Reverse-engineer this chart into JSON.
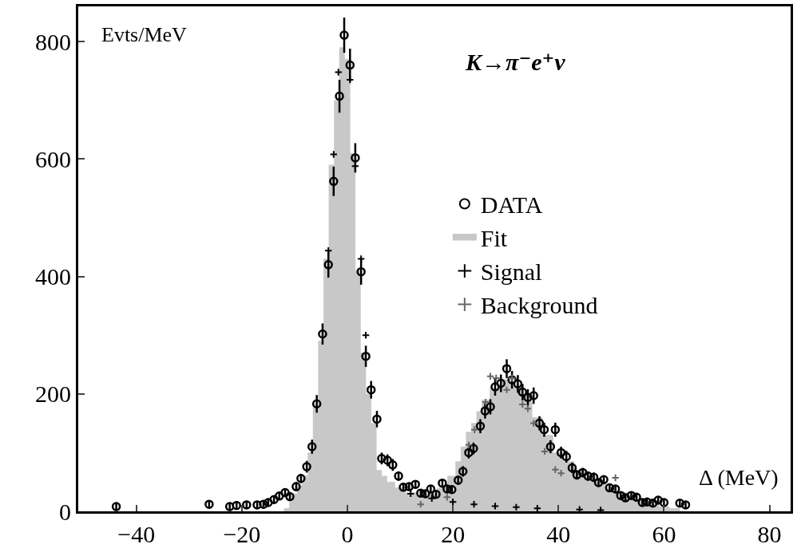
{
  "chart_data": {
    "type": "scatter",
    "title": "K→π⁻e⁺ν",
    "xlabel": "Δ (MeV)",
    "ylabel": "Evts/MeV",
    "xlim": [
      -51,
      84
    ],
    "ylim": [
      0,
      860
    ],
    "xticks": [
      -40,
      -20,
      0,
      20,
      40,
      60,
      80
    ],
    "yticks": [
      0,
      200,
      400,
      600,
      800
    ],
    "grid": false,
    "legend": "right",
    "series": [
      {
        "name": "DATA",
        "type": "scatter",
        "marker": "circle",
        "color": "#000000",
        "x": [
          -43.8,
          -26.2,
          -22.3,
          -21,
          -19.1,
          -17.1,
          -15.9,
          -15,
          -13.9,
          -12.9,
          -11.8,
          -10.9,
          -9.7,
          -8.8,
          -7.7,
          -6.7,
          -5.8,
          -4.7,
          -3.6,
          -2.6,
          -1.5,
          -0.6,
          0.5,
          1.5,
          2.6,
          3.5,
          4.5,
          5.6,
          6.5,
          7.6,
          8.6,
          9.7,
          10.6,
          11.7,
          12.9,
          13.9,
          14.8,
          15.8,
          16.8,
          18,
          18.9,
          19.8,
          21,
          21.9,
          23,
          23.9,
          25.2,
          26.1,
          27.1,
          28,
          29.1,
          30.2,
          31.2,
          32.3,
          33.2,
          34.2,
          35.3,
          36.4,
          37.3,
          38.5,
          39.4,
          40.5,
          41.5,
          42.6,
          43.5,
          44.6,
          45.6,
          46.7,
          47.6,
          48.6,
          49.7,
          50.8,
          51.8,
          52.7,
          53.8,
          54.8,
          55.9,
          56.8,
          57.9,
          58.9,
          60,
          63,
          64.1
        ],
        "values": [
          8,
          12,
          8,
          10,
          11,
          11,
          12,
          15,
          20,
          26,
          32,
          25,
          42,
          56,
          76,
          110,
          183,
          302,
          420,
          562,
          707,
          811,
          760,
          602,
          408,
          264,
          207,
          157,
          90,
          87,
          79,
          60,
          41,
          42,
          46,
          31,
          30,
          38,
          29,
          48,
          38,
          37,
          53,
          68,
          100,
          107,
          145,
          171,
          178,
          212,
          218,
          243,
          224,
          217,
          203,
          194,
          197,
          150,
          139,
          110,
          139,
          100,
          93,
          74,
          62,
          66,
          60,
          58,
          49,
          54,
          40,
          38,
          27,
          23,
          27,
          24,
          15,
          16,
          14,
          19,
          15,
          14,
          11
        ],
        "errors": [
          7,
          7,
          7,
          7,
          7,
          7,
          7,
          7,
          7,
          7,
          7,
          7,
          8,
          8,
          10,
          12,
          15,
          18,
          22,
          25,
          28,
          30,
          28,
          25,
          22,
          18,
          15,
          14,
          10,
          10,
          10,
          8,
          7,
          7,
          7,
          7,
          7,
          7,
          7,
          7,
          7,
          7,
          8,
          9,
          10,
          10,
          12,
          13,
          13,
          15,
          15,
          16,
          15,
          15,
          14,
          14,
          14,
          12,
          12,
          11,
          12,
          10,
          10,
          9,
          8,
          8,
          8,
          8,
          7,
          7,
          7,
          7,
          6,
          6,
          6,
          6,
          5,
          5,
          5,
          5,
          5,
          5,
          5
        ]
      },
      {
        "name": "Fit",
        "type": "area",
        "color": "#c8c8c8",
        "x": [
          -12,
          -10,
          -9,
          -8,
          -7,
          -6,
          -5,
          -4,
          -3,
          -2,
          -1,
          0,
          1,
          2,
          3,
          4,
          5,
          6,
          7,
          8,
          10,
          12,
          14,
          16,
          18,
          20,
          21,
          22,
          23,
          24,
          25,
          26,
          28,
          30,
          32,
          34,
          36,
          38,
          40,
          42,
          44,
          46,
          48,
          50,
          52,
          54,
          56,
          58,
          60,
          62,
          64
        ],
        "values": [
          5,
          30,
          45,
          60,
          100,
          180,
          290,
          430,
          590,
          700,
          790,
          770,
          610,
          410,
          270,
          200,
          150,
          70,
          60,
          50,
          40,
          32,
          28,
          30,
          40,
          60,
          85,
          110,
          135,
          150,
          170,
          190,
          210,
          225,
          215,
          200,
          160,
          130,
          100,
          85,
          70,
          60,
          50,
          40,
          32,
          25,
          18,
          12,
          8,
          5,
          0
        ]
      },
      {
        "name": "Signal",
        "type": "scatter",
        "marker": "cross",
        "color": "#000000",
        "x": [
          -3.6,
          -2.6,
          -1.7,
          -0.6,
          0.5,
          1.5,
          2.6,
          3.5,
          12,
          16,
          20,
          24,
          28,
          32,
          36,
          40,
          44,
          48
        ],
        "values": [
          444,
          608,
          748,
          null,
          735,
          588,
          430,
          300,
          30,
          22,
          16,
          12,
          9,
          7,
          5,
          null,
          3,
          2
        ]
      },
      {
        "name": "Background",
        "type": "scatter",
        "marker": "cross",
        "color": "#666666",
        "x": [
          13.9,
          18.9,
          23,
          24.1,
          26.2,
          27.1,
          28.2,
          30.2,
          31.2,
          33.2,
          34.2,
          35.3,
          37.4,
          39.4,
          40.5,
          50.8
        ],
        "values": [
          12,
          24,
          113,
          139,
          186,
          230,
          227,
          207,
          227,
          182,
          175,
          150,
          102,
          71,
          65,
          57
        ]
      }
    ]
  }
}
